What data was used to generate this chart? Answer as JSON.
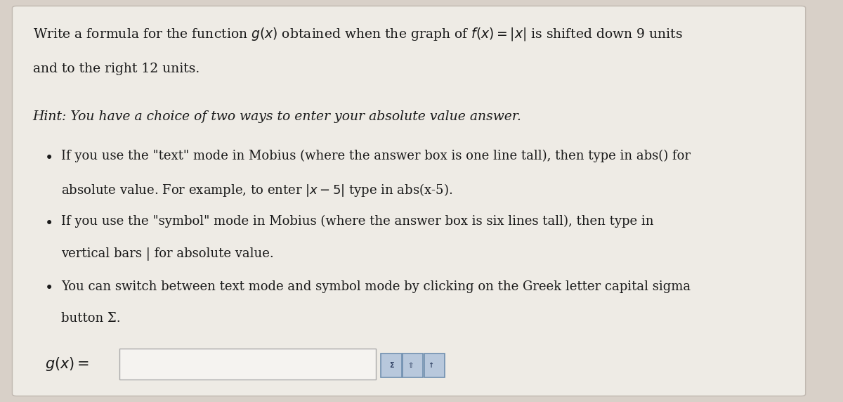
{
  "background_color": "#d8d0c8",
  "card_color": "#eeebe5",
  "title_line1": "Write a formula for the function $g(x)$ obtained when the graph of $f(x) = |x|$ is shifted down 9 units",
  "title_line2": "and to the right 12 units.",
  "hint_line": "Hint: You have a choice of two ways to enter your absolute value answer.",
  "bullet1_line1": "If you use the \"text\" mode in Mobius (where the answer box is one line tall), then type in abs() for",
  "bullet1_line2": "absolute value. For example, to enter $|x - 5|$ type in abs(x-5).",
  "bullet2_line1": "If you use the \"symbol\" mode in Mobius (where the answer box is six lines tall), then type in",
  "bullet2_line2": "vertical bars | for absolute value.",
  "bullet3_line1": "You can switch between text mode and symbol mode by clicking on the Greek letter capital sigma",
  "bullet3_line2": "button Σ.",
  "gx_label": "$g(x) =$",
  "font_size_title": 13.5,
  "font_size_hint": 13.5,
  "font_size_bullets": 13.0,
  "font_size_gx": 15,
  "text_color": "#1a1a1a",
  "card_edge_color": "#c0b8b0",
  "input_box_color": "#f5f3f0",
  "input_box_edge": "#aaaaaa",
  "icon_color": "#b8c8dc",
  "icon_edge": "#7090b0"
}
